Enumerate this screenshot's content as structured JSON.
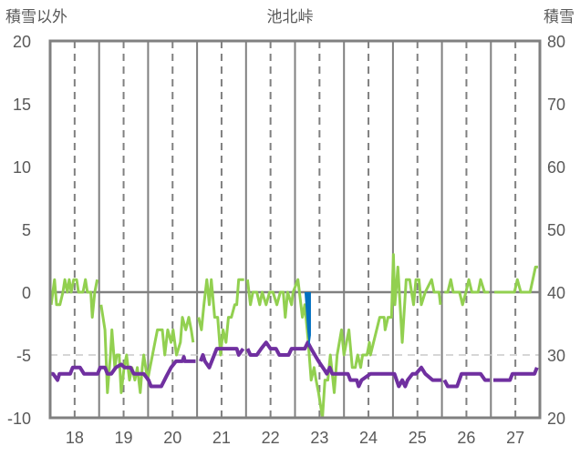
{
  "chart_data": {
    "type": "line",
    "title": "池北峠",
    "ylabel_left": "積雪以外",
    "ylabel_right": "積雪",
    "xlim": [
      17.5,
      27.5
    ],
    "ylim_left": [
      -10,
      20
    ],
    "ylim_right": [
      20,
      80
    ],
    "x_ticks": [
      18,
      19,
      20,
      21,
      22,
      23,
      24,
      25,
      26,
      27
    ],
    "y_ticks_left": [
      20,
      15,
      10,
      5,
      0,
      -5,
      -10
    ],
    "y_ticks_right": [
      80,
      70,
      60,
      50,
      40,
      30,
      20
    ],
    "grid": "vertical solid at day boundaries, dashed at tick labels; horizontal at 0 and -5",
    "colors": {
      "green": "#92D050",
      "purple": "#7030A0",
      "blue": "#0070C0",
      "axis": "#808080"
    },
    "series": [
      {
        "name": "green",
        "axis": "left",
        "color": "#92D050",
        "segments": [
          [
            [
              17.52,
              -1
            ],
            [
              17.59,
              1
            ],
            [
              17.63,
              -1
            ],
            [
              17.7,
              -1
            ],
            [
              17.76,
              0
            ],
            [
              17.8,
              1
            ],
            [
              17.85,
              0
            ],
            [
              17.89,
              1
            ],
            [
              17.93,
              0
            ],
            [
              17.98,
              1
            ],
            [
              18.04,
              1
            ],
            [
              18.08,
              0
            ],
            [
              18.17,
              0
            ],
            [
              18.22,
              1
            ],
            [
              18.26,
              0
            ],
            [
              18.33,
              0
            ],
            [
              18.36,
              -2
            ],
            [
              18.41,
              0
            ],
            [
              18.46,
              1
            ]
          ],
          [
            [
              18.54,
              -1
            ],
            [
              18.62,
              -3
            ],
            [
              18.67,
              -8
            ],
            [
              18.73,
              -5
            ],
            [
              18.76,
              -3
            ],
            [
              18.82,
              -6
            ],
            [
              18.86,
              -5
            ],
            [
              18.91,
              -5
            ],
            [
              18.95,
              -8
            ],
            [
              19.01,
              -6
            ],
            [
              19.06,
              -5
            ],
            [
              19.12,
              -7
            ],
            [
              19.17,
              -6
            ],
            [
              19.23,
              -7
            ],
            [
              19.28,
              -6
            ],
            [
              19.34,
              -8
            ],
            [
              19.38,
              -6
            ],
            [
              19.41,
              -5
            ],
            [
              19.49,
              -7
            ],
            [
              19.54,
              -6
            ],
            [
              19.64,
              -4
            ],
            [
              19.69,
              -3
            ],
            [
              19.79,
              -3
            ],
            [
              19.84,
              -5
            ],
            [
              19.9,
              -3
            ],
            [
              19.97,
              -4
            ],
            [
              20.01,
              -3
            ],
            [
              20.08,
              -5
            ],
            [
              20.16,
              -4
            ],
            [
              20.2,
              -2
            ],
            [
              20.27,
              -3
            ],
            [
              20.33,
              -2
            ],
            [
              20.38,
              -3
            ],
            [
              20.42,
              -4
            ]
          ],
          [
            [
              20.53,
              -2
            ],
            [
              20.59,
              -3
            ],
            [
              20.64,
              -1
            ],
            [
              20.7,
              1
            ],
            [
              20.75,
              -1
            ],
            [
              20.79,
              1
            ],
            [
              20.86,
              -2
            ],
            [
              20.92,
              -2
            ],
            [
              20.98,
              -5
            ],
            [
              21.03,
              -3
            ],
            [
              21.09,
              -4
            ],
            [
              21.14,
              -2
            ],
            [
              21.2,
              -2
            ],
            [
              21.27,
              -1
            ],
            [
              21.31,
              -1
            ],
            [
              21.35,
              1
            ],
            [
              21.46,
              1
            ]
          ],
          [
            [
              21.53,
              1
            ],
            [
              21.59,
              -1
            ],
            [
              21.64,
              0
            ],
            [
              21.72,
              0
            ],
            [
              21.78,
              -1
            ],
            [
              21.83,
              0
            ],
            [
              21.91,
              -1
            ],
            [
              21.98,
              0
            ],
            [
              22.05,
              0
            ],
            [
              22.13,
              -1
            ],
            [
              22.2,
              0
            ],
            [
              22.26,
              0
            ],
            [
              22.3,
              -2
            ],
            [
              22.35,
              0
            ],
            [
              22.43,
              -1
            ],
            [
              22.46,
              0
            ],
            [
              22.56,
              1
            ],
            [
              22.65,
              -2
            ],
            [
              22.7,
              -1
            ],
            [
              22.76,
              -3.5
            ],
            [
              22.83,
              -7
            ],
            [
              22.89,
              -6
            ],
            [
              22.93,
              -7
            ],
            [
              22.98,
              -8
            ],
            [
              23.06,
              -10
            ],
            [
              23.11,
              -7
            ],
            [
              23.17,
              -7
            ],
            [
              23.22,
              -5
            ],
            [
              23.3,
              -8
            ],
            [
              23.36,
              -5
            ],
            [
              23.45,
              -3
            ],
            [
              23.5,
              -5
            ],
            [
              23.6,
              -3
            ],
            [
              23.67,
              -6
            ],
            [
              23.73,
              -6
            ],
            [
              23.78,
              -5
            ],
            [
              23.84,
              -6
            ],
            [
              23.88,
              -5
            ],
            [
              23.97,
              -5
            ],
            [
              24.02,
              -4
            ],
            [
              24.04,
              -5
            ],
            [
              24.23,
              -2
            ],
            [
              24.32,
              -2
            ],
            [
              24.34,
              -3
            ],
            [
              24.4,
              -2
            ],
            [
              24.47,
              -2
            ],
            [
              24.51,
              3
            ],
            [
              24.54,
              -1
            ],
            [
              24.6,
              2
            ],
            [
              24.69,
              -4
            ],
            [
              24.77,
              1
            ],
            [
              24.84,
              1
            ],
            [
              24.92,
              -1
            ],
            [
              24.97,
              1
            ],
            [
              25.03,
              1
            ],
            [
              25.08,
              -1
            ],
            [
              25.16,
              0
            ],
            [
              25.29,
              1
            ],
            [
              25.34,
              0
            ],
            [
              25.44,
              0
            ],
            [
              25.47,
              -1
            ]
          ],
          [
            [
              25.55,
              0
            ],
            [
              25.62,
              0
            ],
            [
              25.68,
              1
            ],
            [
              25.73,
              0
            ],
            [
              25.86,
              0
            ],
            [
              25.92,
              -1
            ],
            [
              25.99,
              0
            ],
            [
              26.05,
              1
            ],
            [
              26.11,
              0
            ],
            [
              26.24,
              0
            ],
            [
              26.29,
              1
            ],
            [
              26.37,
              0
            ],
            [
              26.46,
              0
            ]
          ],
          [
            [
              26.57,
              0
            ],
            [
              26.98,
              0
            ],
            [
              27.04,
              1
            ],
            [
              27.11,
              0
            ],
            [
              27.3,
              0
            ],
            [
              27.41,
              2
            ],
            [
              27.46,
              2
            ]
          ]
        ]
      },
      {
        "name": "purple",
        "axis": "right",
        "color": "#7030A0",
        "segments": [
          [
            [
              17.5,
              27
            ],
            [
              17.56,
              27
            ],
            [
              17.65,
              26
            ],
            [
              17.69,
              27
            ],
            [
              17.91,
              27
            ],
            [
              17.96,
              28
            ],
            [
              18.11,
              28
            ],
            [
              18.19,
              27
            ],
            [
              18.47,
              27
            ],
            [
              18.52,
              28
            ],
            [
              18.62,
              28
            ],
            [
              18.67,
              27
            ],
            [
              18.75,
              27
            ],
            [
              18.84,
              28
            ],
            [
              18.95,
              28.5
            ],
            [
              19.02,
              28
            ],
            [
              19.14,
              28
            ],
            [
              19.21,
              27
            ],
            [
              19.41,
              27
            ],
            [
              19.51,
              26
            ],
            [
              19.56,
              25
            ],
            [
              19.77,
              25
            ],
            [
              19.88,
              26.7
            ],
            [
              19.97,
              28
            ],
            [
              20.07,
              29
            ],
            [
              20.2,
              29
            ],
            [
              20.23,
              29.7
            ],
            [
              20.25,
              29
            ],
            [
              20.47,
              29
            ]
          ],
          [
            [
              20.57,
              29
            ],
            [
              20.62,
              30
            ],
            [
              20.66,
              29
            ],
            [
              20.75,
              28
            ],
            [
              20.9,
              31
            ],
            [
              21.31,
              31
            ],
            [
              21.35,
              30
            ],
            [
              21.44,
              31
            ]
          ],
          [
            [
              21.53,
              31
            ],
            [
              21.59,
              30
            ],
            [
              21.72,
              30
            ],
            [
              21.81,
              31
            ],
            [
              21.91,
              32
            ],
            [
              22.0,
              31
            ],
            [
              22.11,
              31
            ],
            [
              22.18,
              30
            ],
            [
              22.37,
              30
            ],
            [
              22.43,
              31
            ],
            [
              22.7,
              31
            ],
            [
              22.76,
              32
            ],
            [
              22.83,
              31
            ],
            [
              22.98,
              29
            ],
            [
              23.11,
              27.5
            ],
            [
              23.15,
              27
            ],
            [
              23.21,
              28
            ],
            [
              23.26,
              27
            ],
            [
              23.58,
              27
            ],
            [
              23.63,
              26
            ],
            [
              23.76,
              26
            ],
            [
              23.8,
              25
            ],
            [
              23.86,
              26
            ],
            [
              24.04,
              27
            ],
            [
              24.53,
              27
            ],
            [
              24.62,
              25
            ],
            [
              24.69,
              26
            ],
            [
              24.75,
              25
            ],
            [
              24.8,
              26
            ],
            [
              24.9,
              27
            ],
            [
              24.97,
              27
            ],
            [
              25.08,
              28
            ],
            [
              25.16,
              27
            ],
            [
              25.31,
              26
            ],
            [
              25.49,
              26
            ]
          ],
          [
            [
              25.55,
              26
            ],
            [
              25.62,
              25
            ],
            [
              25.81,
              25
            ],
            [
              25.9,
              27
            ],
            [
              26.29,
              27
            ],
            [
              26.38,
              26
            ],
            [
              26.48,
              26
            ]
          ],
          [
            [
              26.55,
              26
            ],
            [
              26.89,
              26
            ],
            [
              26.94,
              27
            ],
            [
              27.39,
              27
            ],
            [
              27.44,
              28
            ]
          ]
        ]
      },
      {
        "name": "blue",
        "axis": "left",
        "type": "bar",
        "color": "#0070C0",
        "points": [
          [
            22.75,
            -3
          ]
        ]
      }
    ]
  }
}
